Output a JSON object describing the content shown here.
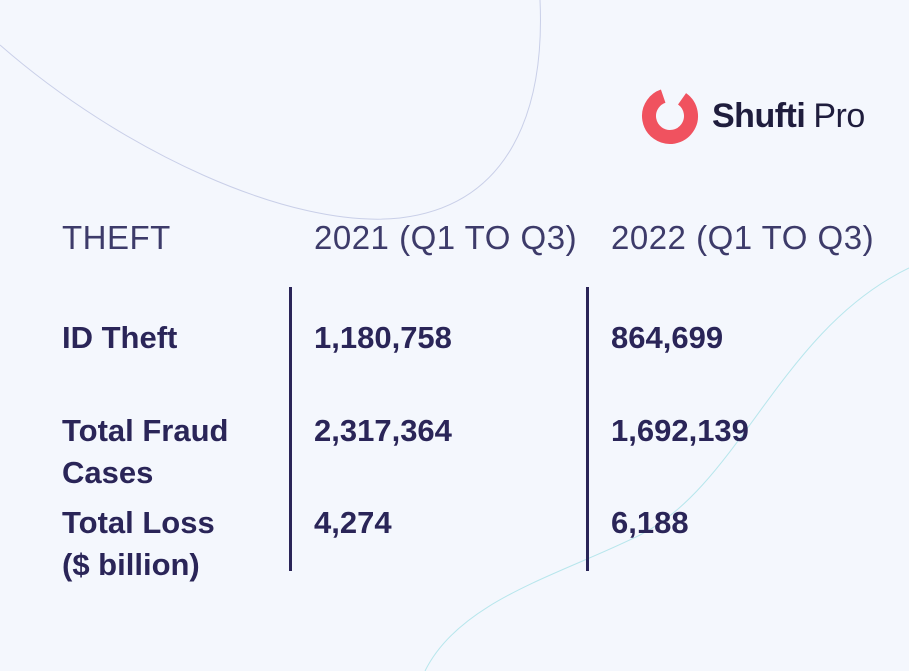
{
  "brand": {
    "name_part1": "Shufti",
    "name_part2": "Pro",
    "logo_color": "#f0525f"
  },
  "colors": {
    "background": "#f4f7fd",
    "text": "#2a2558",
    "divider": "#2a2558"
  },
  "chart_data": {
    "type": "table",
    "columns": [
      "THEFT",
      "2021 (Q1 TO Q3)",
      "2022 (Q1 TO Q3)"
    ],
    "rows": [
      {
        "label_lines": [
          "ID Theft"
        ],
        "values": [
          "1,180,758",
          "864,699"
        ]
      },
      {
        "label_lines": [
          "Total Fraud",
          "Cases"
        ],
        "values": [
          "2,317,364",
          "1,692,139"
        ]
      },
      {
        "label_lines": [
          "Total Loss",
          "($ billion)"
        ],
        "values": [
          "4,274",
          "6,188"
        ]
      }
    ]
  }
}
